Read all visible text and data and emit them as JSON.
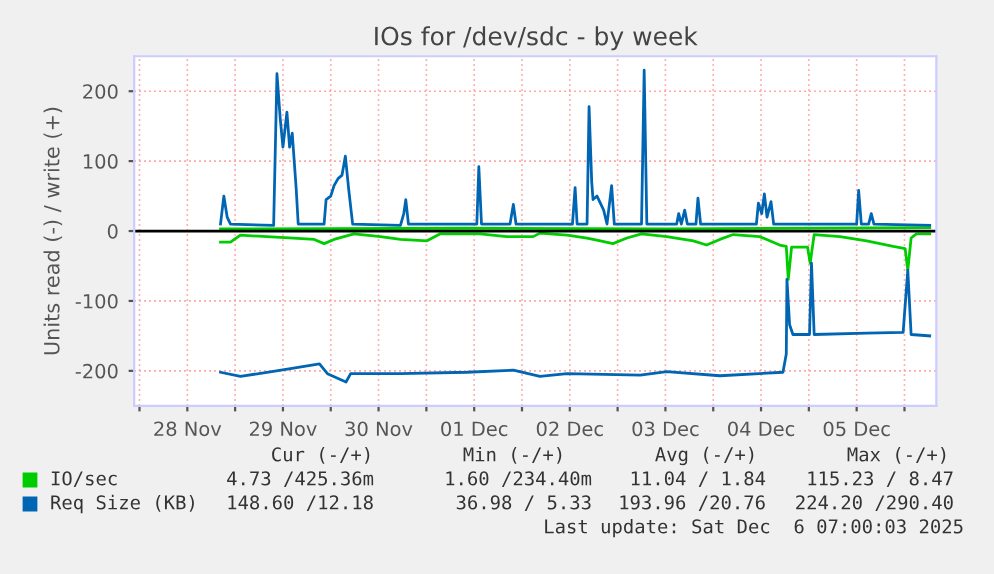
{
  "chart_data": {
    "type": "line",
    "title": "IOs for /dev/sdc - by week",
    "ylabel": "Units read (-) / write (+)",
    "xlim": [
      "2025-11-27T22:40",
      "2025-12-06T08:00"
    ],
    "xticks": [
      {
        "value": "2025-11-28T00:00",
        "label": null
      },
      {
        "value": "2025-11-28T12:00",
        "label": "28 Nov"
      },
      {
        "value": "2025-11-29T00:00",
        "label": null
      },
      {
        "value": "2025-11-29T12:00",
        "label": "29 Nov"
      },
      {
        "value": "2025-11-30T00:00",
        "label": null
      },
      {
        "value": "2025-11-30T12:00",
        "label": "30 Nov"
      },
      {
        "value": "2025-12-01T00:00",
        "label": null
      },
      {
        "value": "2025-12-01T12:00",
        "label": "01 Dec"
      },
      {
        "value": "2025-12-02T00:00",
        "label": null
      },
      {
        "value": "2025-12-02T12:00",
        "label": "02 Dec"
      },
      {
        "value": "2025-12-03T00:00",
        "label": null
      },
      {
        "value": "2025-12-03T12:00",
        "label": "03 Dec"
      },
      {
        "value": "2025-12-04T00:00",
        "label": null
      },
      {
        "value": "2025-12-04T12:00",
        "label": "04 Dec"
      },
      {
        "value": "2025-12-05T00:00",
        "label": null
      },
      {
        "value": "2025-12-05T12:00",
        "label": "05 Dec"
      },
      {
        "value": "2025-12-06T00:00",
        "label": null
      }
    ],
    "ylim": [
      -250,
      250
    ],
    "yticks": [
      -200,
      -100,
      0,
      100,
      200
    ],
    "grid": true,
    "legend": "bottom",
    "ref_lines": [
      {
        "axis": "y",
        "value": 0,
        "color": "#000000"
      }
    ],
    "series": [
      {
        "name": "IO/sec",
        "color": "#00cc00",
        "x": [
          "2025-11-28T20:20",
          "2025-11-28T22:50",
          "2025-11-29T01:20",
          "2025-11-29T08:00",
          "2025-11-29T14:40",
          "2025-11-29T19:50",
          "2025-11-29T22:20",
          "2025-11-30T00:50",
          "2025-11-30T05:50",
          "2025-11-30T12:30",
          "2025-11-30T17:30",
          "2025-12-01T00:10",
          "2025-12-01T03:30",
          "2025-12-01T13:30",
          "2025-12-01T20:10",
          "2025-12-02T02:50",
          "2025-12-02T04:30",
          "2025-12-02T11:20",
          "2025-12-02T16:20",
          "2025-12-02T19:40",
          "2025-12-02T22:50",
          "2025-12-03T02:20",
          "2025-12-03T06:00",
          "2025-12-03T12:20",
          "2025-12-03T19:00",
          "2025-12-03T22:20",
          "2025-12-04T01:40",
          "2025-12-04T05:00",
          "2025-12-04T11:40",
          "2025-12-04T16:40",
          "2025-12-04T18:20",
          "2025-12-04T18:50",
          "2025-12-04T19:40",
          "2025-12-04T23:40",
          "2025-12-05T00:20",
          "2025-12-05T01:20",
          "2025-12-05T07:50",
          "2025-12-05T14:30",
          "2025-12-05T21:10",
          "2025-12-06T00:10",
          "2025-12-06T00:50",
          "2025-12-06T01:40",
          "2025-12-06T03:00",
          "2025-12-06T06:20"
        ],
        "values": [
          -16,
          -16,
          -6,
          -8,
          -10,
          -12,
          -18,
          -12,
          -4,
          -8,
          -12,
          -14,
          -4,
          -4,
          -8,
          -8,
          -3,
          -6,
          -10,
          -14,
          -18,
          -10,
          -4,
          -8,
          -14,
          -20,
          -12,
          -5,
          -8,
          -20,
          -22,
          -69,
          -23,
          -23,
          -46,
          -5,
          -8,
          -14,
          -22,
          -25,
          -56,
          -10,
          -4,
          -4
        ]
      },
      {
        "color": "#00cc00",
        "x": [
          "2025-11-28T20:20",
          "2025-12-01T10:10",
          "2025-12-03T12:20",
          "2025-12-06T06:20"
        ],
        "values": [
          3,
          4,
          3,
          5
        ]
      },
      {
        "name": "Req Size (KB)",
        "color": "#0066b3",
        "x": [
          "2025-11-28T20:20",
          "2025-11-29T01:20",
          "2025-11-29T08:00",
          "2025-11-29T14:40",
          "2025-11-29T21:10",
          "2025-11-29T23:10",
          "2025-11-30T03:50",
          "2025-11-30T05:00",
          "2025-11-30T17:30",
          "2025-12-01T10:10",
          "2025-12-01T21:50",
          "2025-12-02T04:30",
          "2025-12-02T11:20",
          "2025-12-03T05:40",
          "2025-12-03T12:20",
          "2025-12-04T01:40",
          "2025-12-04T17:30",
          "2025-12-04T18:20",
          "2025-12-04T18:30",
          "2025-12-04T19:10",
          "2025-12-04T20:00",
          "2025-12-05T00:10",
          "2025-12-05T00:40",
          "2025-12-05T01:20",
          "2025-12-05T14:30",
          "2025-12-05T23:40",
          "2025-12-06T00:50",
          "2025-12-06T01:40",
          "2025-12-06T06:20"
        ],
        "values": [
          -202,
          -208,
          -202,
          -196,
          -190,
          -204,
          -216,
          -204,
          -204,
          -202,
          -199,
          -208,
          -204,
          -206,
          -201,
          -207,
          -202,
          -176,
          -69,
          -134,
          -148,
          -148,
          -46,
          -148,
          -146,
          -145,
          -56,
          -148,
          -150
        ]
      },
      {
        "color": "#0066b3",
        "x": [
          "2025-11-28T20:20",
          "2025-11-28T21:10",
          "2025-11-28T22:00",
          "2025-11-28T22:50",
          "2025-11-29T09:40",
          "2025-11-29T10:30",
          "2025-11-29T11:20",
          "2025-11-29T12:00",
          "2025-11-29T13:00",
          "2025-11-29T13:40",
          "2025-11-29T14:20",
          "2025-11-29T14:50",
          "2025-11-29T15:20",
          "2025-11-29T15:50",
          "2025-11-29T22:20",
          "2025-11-29T22:50",
          "2025-11-30T00:00",
          "2025-11-30T00:50",
          "2025-11-30T01:50",
          "2025-11-30T02:50",
          "2025-11-30T03:40",
          "2025-11-30T04:30",
          "2025-11-30T05:30",
          "2025-11-30T17:30",
          "2025-11-30T18:20",
          "2025-11-30T18:50",
          "2025-11-30T19:30",
          "2025-12-01T12:40",
          "2025-12-01T13:10",
          "2025-12-01T13:50",
          "2025-12-01T21:00",
          "2025-12-01T21:50",
          "2025-12-01T22:30",
          "2025-12-02T12:40",
          "2025-12-02T13:20",
          "2025-12-02T13:50",
          "2025-12-02T16:20",
          "2025-12-02T16:50",
          "2025-12-02T17:30",
          "2025-12-02T17:50",
          "2025-12-02T18:50",
          "2025-12-02T20:30",
          "2025-12-02T21:20",
          "2025-12-02T22:30",
          "2025-12-02T23:10",
          "2025-12-03T06:00",
          "2025-12-03T06:40",
          "2025-12-03T07:20",
          "2025-12-03T14:50",
          "2025-12-03T15:20",
          "2025-12-03T16:00",
          "2025-12-03T16:50",
          "2025-12-03T17:30",
          "2025-12-03T19:40",
          "2025-12-03T20:10",
          "2025-12-03T20:50",
          "2025-12-04T10:50",
          "2025-12-04T11:20",
          "2025-12-04T12:10",
          "2025-12-04T12:50",
          "2025-12-04T13:30",
          "2025-12-04T14:30",
          "2025-12-04T15:10",
          "2025-12-05T12:00",
          "2025-12-05T12:30",
          "2025-12-05T13:10",
          "2025-12-05T15:00",
          "2025-12-05T15:40",
          "2025-12-05T16:20",
          "2025-12-06T06:20"
        ],
        "values": [
          10,
          50,
          20,
          10,
          8,
          225,
          160,
          120,
          170,
          120,
          140,
          100,
          60,
          10,
          10,
          45,
          50,
          65,
          75,
          80,
          107,
          60,
          10,
          8,
          25,
          45,
          10,
          10,
          92,
          10,
          10,
          38,
          10,
          10,
          62,
          10,
          10,
          178,
          70,
          45,
          50,
          30,
          10,
          65,
          10,
          10,
          230,
          10,
          10,
          25,
          10,
          30,
          10,
          10,
          47,
          10,
          10,
          40,
          25,
          53,
          20,
          42,
          10,
          10,
          58,
          10,
          10,
          25,
          10,
          8
        ]
      }
    ],
    "annotations": [
      "Cur (-/+)",
      "Min (-/+)",
      "Avg (-/+)",
      "Max (-/+)",
      "4.73 /425.36m",
      "1.60 /234.40m",
      "11.04 / 1.84",
      "115.23 / 8.47",
      "148.60 /12.18",
      "36.98 / 5.33",
      "193.96 /20.76",
      "224.20 /290.40",
      "Last update: Sat Dec  6 07:00:03 2025"
    ]
  }
}
